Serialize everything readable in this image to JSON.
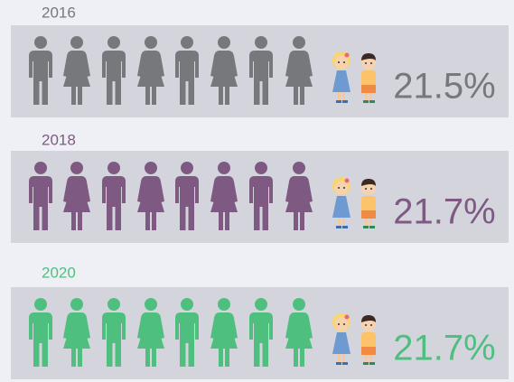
{
  "chart_data": {
    "type": "pictograph",
    "categories": [
      "2016",
      "2018",
      "2020"
    ],
    "values": [
      21.5,
      21.7,
      21.7
    ],
    "value_labels": [
      "21.5%",
      "21.7%",
      "21.7%"
    ],
    "colors": [
      "#76787c",
      "#7e5a82",
      "#4fbf80"
    ]
  }
}
